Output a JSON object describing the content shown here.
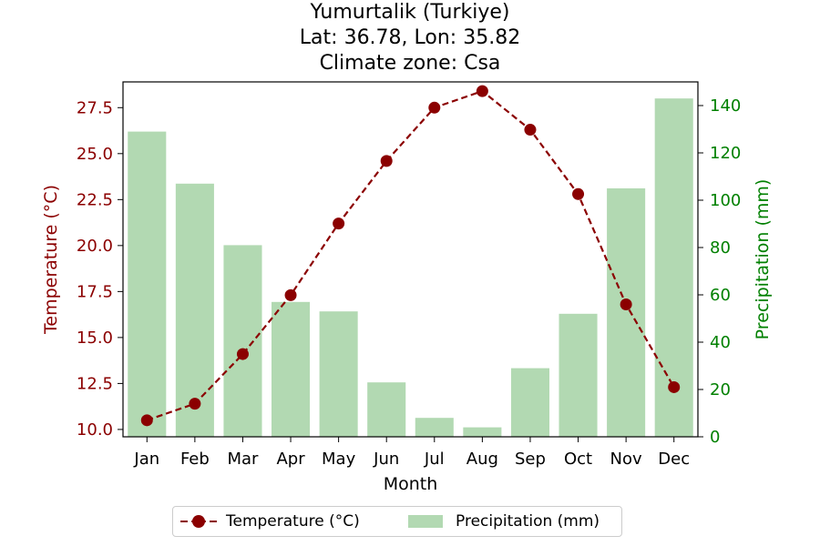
{
  "title": {
    "line1": "Yumurtalik (Turkiye)",
    "line2": "Lat: 36.78, Lon: 35.82",
    "line3": "Climate zone: Csa"
  },
  "colors": {
    "temperature": "#8b0000",
    "precipitation_bar": "#b2d9b2",
    "precipitation_axis": "#008000"
  },
  "chart_data": {
    "type": "bar+line",
    "xlabel": "Month",
    "categories": [
      "Jan",
      "Feb",
      "Mar",
      "Apr",
      "May",
      "Jun",
      "Jul",
      "Aug",
      "Sep",
      "Oct",
      "Nov",
      "Dec"
    ],
    "series": [
      {
        "name": "Temperature (°C)",
        "type": "line",
        "axis": "left",
        "values": [
          10.5,
          11.4,
          14.1,
          17.3,
          21.2,
          24.6,
          27.5,
          28.4,
          26.3,
          22.8,
          16.8,
          12.3
        ]
      },
      {
        "name": "Precipitation (mm)",
        "type": "bar",
        "axis": "right",
        "values": [
          129,
          107,
          81,
          57,
          53,
          23,
          8,
          4,
          29,
          52,
          105,
          143
        ]
      }
    ],
    "y_left": {
      "label": "Temperature (°C)",
      "lim": [
        9.6,
        28.9
      ],
      "ticks": [
        10.0,
        12.5,
        15.0,
        17.5,
        20.0,
        22.5,
        25.0,
        27.5
      ],
      "tick_labels": [
        "10.0",
        "12.5",
        "15.0",
        "17.5",
        "20.0",
        "22.5",
        "25.0",
        "27.5"
      ]
    },
    "y_right": {
      "label": "Precipitation (mm)",
      "lim": [
        0,
        150
      ],
      "ticks": [
        0,
        20,
        40,
        60,
        80,
        100,
        120,
        140
      ],
      "tick_labels": [
        "0",
        "20",
        "40",
        "60",
        "80",
        "100",
        "120",
        "140"
      ]
    },
    "grid": false,
    "legend_position": "bottom-center"
  }
}
